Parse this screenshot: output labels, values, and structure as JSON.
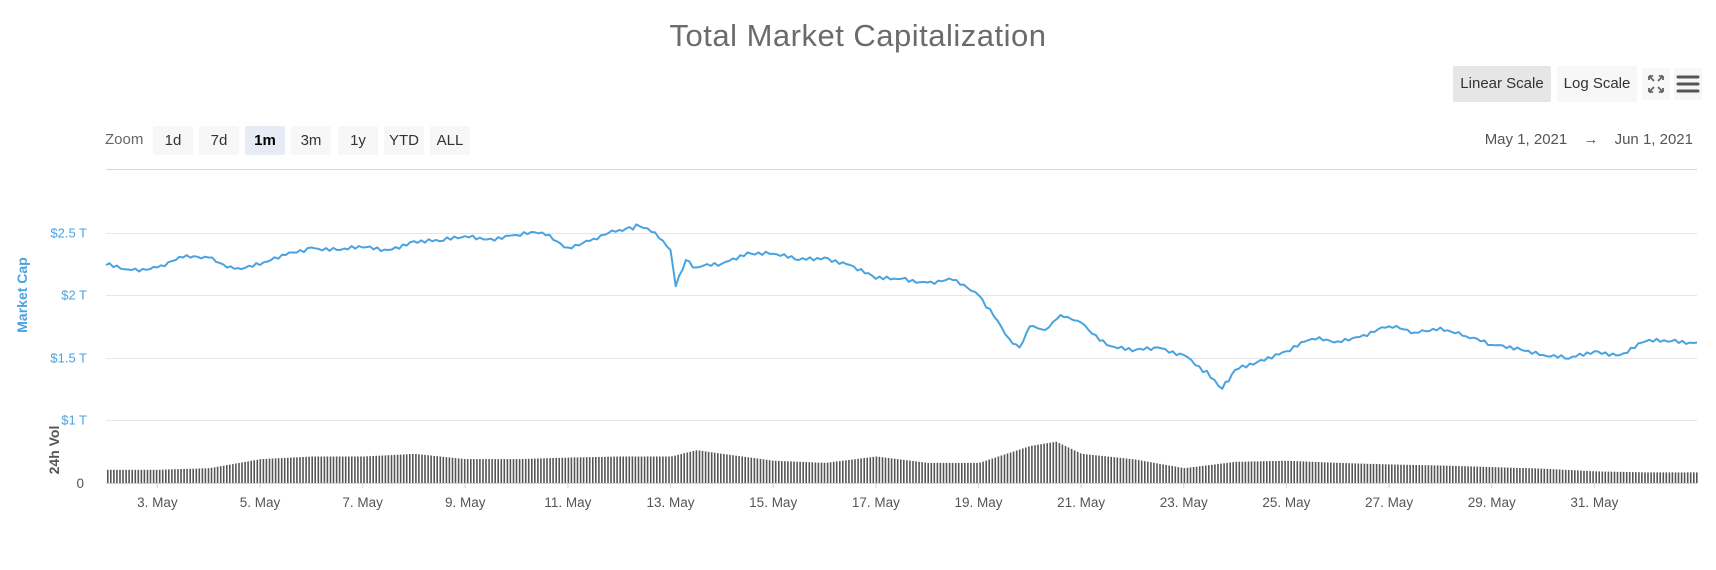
{
  "title": "Total Market Capitalization",
  "scale_buttons": {
    "linear": "Linear Scale",
    "log": "Log Scale",
    "active": "linear"
  },
  "icons": {
    "fullscreen": "fullscreen-icon",
    "menu": "hamburger-menu-icon"
  },
  "zoom": {
    "label": "Zoom",
    "options": [
      "1d",
      "7d",
      "1m",
      "3m",
      "1y",
      "YTD",
      "ALL"
    ],
    "active": "1m"
  },
  "date_range": {
    "from": "May 1, 2021",
    "arrow": "→",
    "to": "Jun 1, 2021"
  },
  "colors": {
    "line": "#4aa3df",
    "volume": "#555555",
    "grid": "#e6e6e6"
  },
  "chart_data": {
    "type": "line",
    "title": "Total Market Capitalization",
    "ylabel": "Market Cap",
    "ylabel2": "24h Vol",
    "y_ticks": [
      "$1 T",
      "$1.5 T",
      "$2 T",
      "$2.5 T"
    ],
    "y_tick_values": [
      1.0,
      1.5,
      2.0,
      2.5
    ],
    "ylim": [
      1.0,
      3.0
    ],
    "volume_ticks": [
      "0"
    ],
    "x_ticks": [
      "3. May",
      "5. May",
      "7. May",
      "9. May",
      "11. May",
      "13. May",
      "15. May",
      "17. May",
      "19. May",
      "21. May",
      "23. May",
      "25. May",
      "27. May",
      "29. May",
      "31. May"
    ],
    "x_tick_days": [
      3,
      5,
      7,
      9,
      11,
      13,
      15,
      17,
      19,
      21,
      23,
      25,
      27,
      29,
      31
    ],
    "xlim_days": [
      2.0,
      33.0
    ],
    "series": [
      {
        "name": "Market Cap",
        "unit": "T USD",
        "x_days": [
          2.0,
          2.5,
          3.0,
          3.5,
          4.0,
          4.5,
          5.0,
          5.5,
          6.0,
          6.5,
          7.0,
          7.5,
          8.0,
          8.5,
          9.0,
          9.5,
          10.0,
          10.5,
          11.0,
          11.5,
          12.0,
          12.4,
          12.7,
          13.0,
          13.1,
          13.3,
          13.5,
          14.0,
          14.5,
          15.0,
          15.5,
          16.0,
          16.5,
          17.0,
          17.5,
          18.0,
          18.5,
          19.0,
          19.3,
          19.6,
          19.8,
          20.0,
          20.3,
          20.6,
          21.0,
          21.5,
          22.0,
          22.5,
          23.0,
          23.3,
          23.6,
          23.75,
          24.0,
          24.5,
          25.0,
          25.5,
          26.0,
          26.5,
          27.0,
          27.5,
          28.0,
          28.5,
          29.0,
          29.5,
          30.0,
          30.5,
          31.0,
          31.5,
          32.0,
          32.5,
          33.0
        ],
        "values": [
          2.24,
          2.2,
          2.22,
          2.3,
          2.3,
          2.21,
          2.24,
          2.32,
          2.38,
          2.36,
          2.38,
          2.36,
          2.43,
          2.43,
          2.47,
          2.45,
          2.48,
          2.5,
          2.38,
          2.45,
          2.52,
          2.55,
          2.5,
          2.36,
          2.07,
          2.28,
          2.22,
          2.25,
          2.34,
          2.33,
          2.28,
          2.3,
          2.24,
          2.13,
          2.13,
          2.1,
          2.12,
          2.0,
          1.83,
          1.65,
          1.58,
          1.75,
          1.72,
          1.84,
          1.78,
          1.6,
          1.55,
          1.58,
          1.52,
          1.43,
          1.32,
          1.25,
          1.4,
          1.48,
          1.55,
          1.65,
          1.63,
          1.68,
          1.75,
          1.7,
          1.74,
          1.67,
          1.6,
          1.58,
          1.52,
          1.49,
          1.55,
          1.52,
          1.63,
          1.63,
          1.62
        ]
      },
      {
        "name": "24h Vol",
        "unit": "relative",
        "x_days": [
          2,
          3,
          4,
          5,
          6,
          7,
          8,
          9,
          10,
          11,
          12,
          13,
          13.5,
          14,
          15,
          16,
          17,
          18,
          19,
          20,
          20.5,
          21,
          22,
          23,
          24,
          25,
          26,
          27,
          28,
          29,
          30,
          31,
          32,
          33
        ],
        "values": [
          0.25,
          0.25,
          0.28,
          0.45,
          0.5,
          0.5,
          0.55,
          0.45,
          0.45,
          0.48,
          0.5,
          0.5,
          0.62,
          0.55,
          0.42,
          0.38,
          0.5,
          0.38,
          0.38,
          0.7,
          0.78,
          0.55,
          0.45,
          0.28,
          0.4,
          0.42,
          0.38,
          0.35,
          0.33,
          0.3,
          0.27,
          0.22,
          0.2,
          0.2
        ]
      }
    ]
  }
}
